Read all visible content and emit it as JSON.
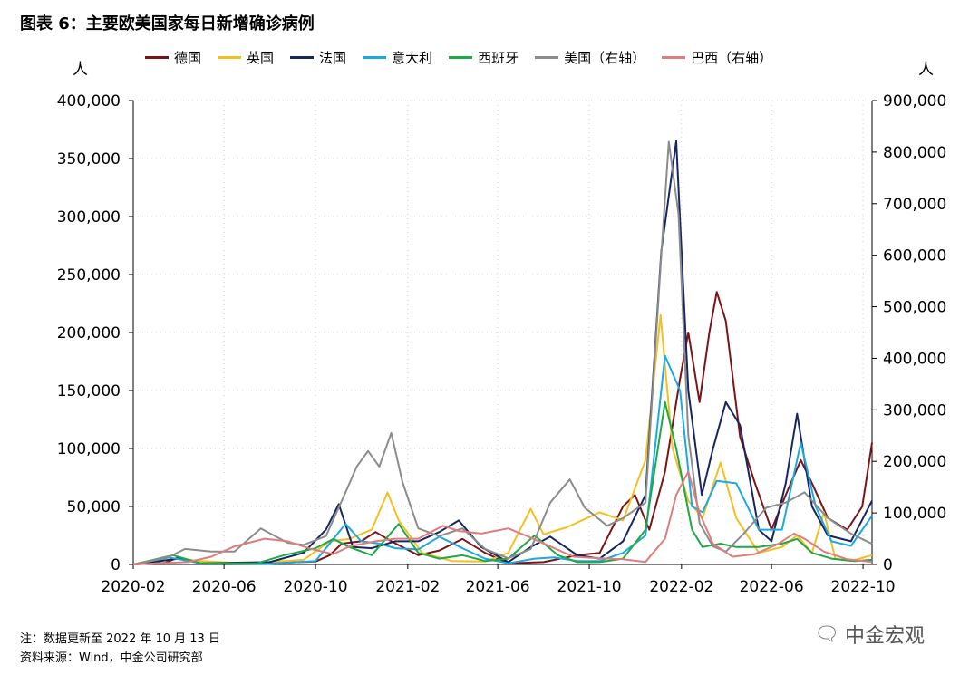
{
  "title": "图表 6：主要欧美国家每日新增确诊病例",
  "unit_left": "人",
  "unit_right": "人",
  "footnote": "注：数据更新至 2022 年 10 月 13 日",
  "source": "资料来源：Wind，中金公司研究部",
  "watermark": "中金宏观",
  "chart_data": {
    "type": "line",
    "x_ticks": [
      "2020-02",
      "2020-06",
      "2020-10",
      "2021-02",
      "2021-06",
      "2021-10",
      "2022-02",
      "2022-06",
      "2022-10"
    ],
    "xlim": [
      "2020-02-01",
      "2022-10-13"
    ],
    "ylim_left": [
      0,
      400000
    ],
    "ylim_right": [
      0,
      900000
    ],
    "y_ticks_left": [
      "0",
      "50,000",
      "100,000",
      "150,000",
      "200,000",
      "250,000",
      "300,000",
      "350,000",
      "400,000"
    ],
    "y_ticks_right": [
      "0",
      "100,000",
      "200,000",
      "300,000",
      "400,000",
      "500,000",
      "600,000",
      "700,000",
      "800,000",
      "900,000"
    ],
    "grid": true,
    "legend_position": "top",
    "series": [
      {
        "name": "德国",
        "axis": "left",
        "color": "#7B1416",
        "points": [
          [
            "2020-02-01",
            0
          ],
          [
            "2020-03-15",
            1500
          ],
          [
            "2020-04-01",
            6000
          ],
          [
            "2020-05-01",
            1000
          ],
          [
            "2020-08-01",
            1200
          ],
          [
            "2020-10-01",
            2500
          ],
          [
            "2020-10-20",
            8000
          ],
          [
            "2020-11-05",
            18000
          ],
          [
            "2020-12-01",
            20000
          ],
          [
            "2020-12-20",
            28000
          ],
          [
            "2021-01-10",
            20000
          ],
          [
            "2021-02-15",
            8000
          ],
          [
            "2021-03-15",
            12000
          ],
          [
            "2021-04-15",
            22000
          ],
          [
            "2021-05-15",
            10000
          ],
          [
            "2021-06-15",
            1000
          ],
          [
            "2021-08-01",
            2000
          ],
          [
            "2021-09-15",
            8000
          ],
          [
            "2021-10-15",
            10000
          ],
          [
            "2021-11-15",
            50000
          ],
          [
            "2021-12-01",
            60000
          ],
          [
            "2021-12-20",
            30000
          ],
          [
            "2022-01-10",
            80000
          ],
          [
            "2022-01-30",
            160000
          ],
          [
            "2022-02-10",
            200000
          ],
          [
            "2022-02-25",
            140000
          ],
          [
            "2022-03-10",
            200000
          ],
          [
            "2022-03-20",
            235000
          ],
          [
            "2022-04-01",
            210000
          ],
          [
            "2022-04-20",
            110000
          ],
          [
            "2022-05-10",
            70000
          ],
          [
            "2022-06-01",
            30000
          ],
          [
            "2022-06-20",
            60000
          ],
          [
            "2022-07-10",
            90000
          ],
          [
            "2022-07-25",
            70000
          ],
          [
            "2022-08-15",
            40000
          ],
          [
            "2022-09-10",
            30000
          ],
          [
            "2022-09-30",
            50000
          ],
          [
            "2022-10-13",
            105000
          ]
        ]
      },
      {
        "name": "英国",
        "axis": "left",
        "color": "#F5BF22",
        "points": [
          [
            "2020-02-01",
            0
          ],
          [
            "2020-04-01",
            5000
          ],
          [
            "2020-05-01",
            3000
          ],
          [
            "2020-07-01",
            800
          ],
          [
            "2020-09-15",
            4000
          ],
          [
            "2020-10-20",
            20000
          ],
          [
            "2020-11-15",
            22000
          ],
          [
            "2020-12-15",
            30000
          ],
          [
            "2021-01-05",
            62000
          ],
          [
            "2021-01-20",
            38000
          ],
          [
            "2021-02-20",
            10000
          ],
          [
            "2021-04-01",
            3000
          ],
          [
            "2021-05-15",
            2500
          ],
          [
            "2021-06-15",
            10000
          ],
          [
            "2021-07-15",
            48000
          ],
          [
            "2021-08-01",
            26000
          ],
          [
            "2021-09-01",
            32000
          ],
          [
            "2021-10-15",
            45000
          ],
          [
            "2021-11-15",
            38000
          ],
          [
            "2021-12-15",
            90000
          ],
          [
            "2022-01-04",
            215000
          ],
          [
            "2022-01-20",
            100000
          ],
          [
            "2022-02-10",
            55000
          ],
          [
            "2022-03-01",
            40000
          ],
          [
            "2022-03-25",
            88000
          ],
          [
            "2022-04-15",
            40000
          ],
          [
            "2022-05-15",
            10000
          ],
          [
            "2022-06-15",
            15000
          ],
          [
            "2022-07-05",
            25000
          ],
          [
            "2022-07-25",
            10000
          ],
          [
            "2022-08-10",
            45000
          ],
          [
            "2022-08-25",
            5000
          ],
          [
            "2022-09-15",
            3000
          ],
          [
            "2022-10-13",
            8000
          ]
        ]
      },
      {
        "name": "法国",
        "axis": "left",
        "color": "#16275F",
        "points": [
          [
            "2020-02-01",
            0
          ],
          [
            "2020-04-01",
            5000
          ],
          [
            "2020-05-01",
            1000
          ],
          [
            "2020-08-01",
            2000
          ],
          [
            "2020-09-15",
            10000
          ],
          [
            "2020-10-15",
            30000
          ],
          [
            "2020-11-01",
            52000
          ],
          [
            "2020-11-20",
            15000
          ],
          [
            "2020-12-15",
            14000
          ],
          [
            "2021-01-15",
            20000
          ],
          [
            "2021-02-15",
            20000
          ],
          [
            "2021-03-15",
            28000
          ],
          [
            "2021-04-10",
            38000
          ],
          [
            "2021-05-10",
            15000
          ],
          [
            "2021-06-15",
            2000
          ],
          [
            "2021-07-15",
            15000
          ],
          [
            "2021-08-10",
            24000
          ],
          [
            "2021-09-15",
            8000
          ],
          [
            "2021-10-15",
            5000
          ],
          [
            "2021-11-15",
            20000
          ],
          [
            "2021-12-15",
            60000
          ],
          [
            "2022-01-05",
            270000
          ],
          [
            "2022-01-25",
            365000
          ],
          [
            "2022-02-10",
            150000
          ],
          [
            "2022-02-28",
            60000
          ],
          [
            "2022-03-15",
            100000
          ],
          [
            "2022-04-01",
            140000
          ],
          [
            "2022-04-20",
            120000
          ],
          [
            "2022-05-15",
            30000
          ],
          [
            "2022-06-01",
            20000
          ],
          [
            "2022-06-20",
            70000
          ],
          [
            "2022-07-05",
            130000
          ],
          [
            "2022-07-25",
            50000
          ],
          [
            "2022-08-15",
            25000
          ],
          [
            "2022-09-15",
            20000
          ],
          [
            "2022-10-01",
            40000
          ],
          [
            "2022-10-13",
            55000
          ]
        ]
      },
      {
        "name": "意大利",
        "axis": "left",
        "color": "#1CA9E1",
        "points": [
          [
            "2020-02-01",
            0
          ],
          [
            "2020-03-20",
            6000
          ],
          [
            "2020-05-01",
            1000
          ],
          [
            "2020-08-01",
            500
          ],
          [
            "2020-10-01",
            3000
          ],
          [
            "2020-11-10",
            35000
          ],
          [
            "2020-12-01",
            20000
          ],
          [
            "2020-12-25",
            18000
          ],
          [
            "2021-01-15",
            14000
          ],
          [
            "2021-02-15",
            13000
          ],
          [
            "2021-03-15",
            24000
          ],
          [
            "2021-04-15",
            14000
          ],
          [
            "2021-05-15",
            5000
          ],
          [
            "2021-06-15",
            1000
          ],
          [
            "2021-07-20",
            5000
          ],
          [
            "2021-08-15",
            6000
          ],
          [
            "2021-09-15",
            3000
          ],
          [
            "2021-10-15",
            3000
          ],
          [
            "2021-11-15",
            10000
          ],
          [
            "2021-12-15",
            25000
          ],
          [
            "2022-01-10",
            180000
          ],
          [
            "2022-01-30",
            150000
          ],
          [
            "2022-02-15",
            50000
          ],
          [
            "2022-03-01",
            45000
          ],
          [
            "2022-03-20",
            72000
          ],
          [
            "2022-04-15",
            70000
          ],
          [
            "2022-05-15",
            30000
          ],
          [
            "2022-06-15",
            30000
          ],
          [
            "2022-07-10",
            105000
          ],
          [
            "2022-07-30",
            50000
          ],
          [
            "2022-08-20",
            20000
          ],
          [
            "2022-09-15",
            16000
          ],
          [
            "2022-10-13",
            42000
          ]
        ]
      },
      {
        "name": "西班牙",
        "axis": "left",
        "color": "#1FA846",
        "points": [
          [
            "2020-02-01",
            0
          ],
          [
            "2020-03-25",
            8000
          ],
          [
            "2020-05-01",
            1000
          ],
          [
            "2020-07-15",
            1000
          ],
          [
            "2020-08-20",
            8000
          ],
          [
            "2020-10-01",
            14000
          ],
          [
            "2020-10-25",
            22000
          ],
          [
            "2020-11-15",
            15000
          ],
          [
            "2020-12-15",
            8000
          ],
          [
            "2021-01-20",
            35000
          ],
          [
            "2021-02-15",
            10000
          ],
          [
            "2021-03-15",
            5000
          ],
          [
            "2021-04-15",
            8000
          ],
          [
            "2021-05-15",
            3000
          ],
          [
            "2021-06-15",
            5000
          ],
          [
            "2021-07-20",
            25000
          ],
          [
            "2021-08-20",
            8000
          ],
          [
            "2021-09-15",
            2000
          ],
          [
            "2021-10-15",
            2000
          ],
          [
            "2021-11-15",
            5000
          ],
          [
            "2021-12-15",
            30000
          ],
          [
            "2022-01-10",
            140000
          ],
          [
            "2022-01-25",
            100000
          ],
          [
            "2022-02-15",
            30000
          ],
          [
            "2022-03-01",
            15000
          ],
          [
            "2022-03-25",
            18000
          ],
          [
            "2022-04-15",
            15000
          ],
          [
            "2022-05-15",
            15000
          ],
          [
            "2022-06-15",
            18000
          ],
          [
            "2022-07-05",
            22000
          ],
          [
            "2022-07-25",
            10000
          ],
          [
            "2022-08-20",
            5000
          ],
          [
            "2022-09-20",
            3000
          ],
          [
            "2022-10-13",
            4000
          ]
        ]
      },
      {
        "name": "美国（右轴）",
        "axis": "right",
        "color": "#8C8C8C",
        "points": [
          [
            "2020-02-01",
            0
          ],
          [
            "2020-03-20",
            15000
          ],
          [
            "2020-04-10",
            30000
          ],
          [
            "2020-05-15",
            25000
          ],
          [
            "2020-06-15",
            25000
          ],
          [
            "2020-07-20",
            70000
          ],
          [
            "2020-08-25",
            42000
          ],
          [
            "2020-09-15",
            38000
          ],
          [
            "2020-10-15",
            55000
          ],
          [
            "2020-11-10",
            140000
          ],
          [
            "2020-11-25",
            190000
          ],
          [
            "2020-12-10",
            220000
          ],
          [
            "2020-12-25",
            190000
          ],
          [
            "2021-01-10",
            255000
          ],
          [
            "2021-01-25",
            160000
          ],
          [
            "2021-02-15",
            70000
          ],
          [
            "2021-03-15",
            55000
          ],
          [
            "2021-04-15",
            70000
          ],
          [
            "2021-05-15",
            30000
          ],
          [
            "2021-06-15",
            12000
          ],
          [
            "2021-07-15",
            30000
          ],
          [
            "2021-08-10",
            120000
          ],
          [
            "2021-09-05",
            165000
          ],
          [
            "2021-09-25",
            110000
          ],
          [
            "2021-10-25",
            75000
          ],
          [
            "2021-11-15",
            90000
          ],
          [
            "2021-12-15",
            120000
          ],
          [
            "2022-01-05",
            600000
          ],
          [
            "2022-01-15",
            820000
          ],
          [
            "2022-01-28",
            680000
          ],
          [
            "2022-02-10",
            250000
          ],
          [
            "2022-02-25",
            80000
          ],
          [
            "2022-03-15",
            35000
          ],
          [
            "2022-04-01",
            25000
          ],
          [
            "2022-04-25",
            60000
          ],
          [
            "2022-05-25",
            110000
          ],
          [
            "2022-06-20",
            120000
          ],
          [
            "2022-07-15",
            140000
          ],
          [
            "2022-08-15",
            90000
          ],
          [
            "2022-09-15",
            60000
          ],
          [
            "2022-10-13",
            40000
          ]
        ]
      },
      {
        "name": "巴西（右轴）",
        "axis": "right",
        "color": "#E07C7C",
        "points": [
          [
            "2020-02-01",
            0
          ],
          [
            "2020-04-15",
            5000
          ],
          [
            "2020-05-15",
            15000
          ],
          [
            "2020-06-15",
            35000
          ],
          [
            "2020-07-25",
            50000
          ],
          [
            "2020-08-25",
            45000
          ],
          [
            "2020-09-25",
            30000
          ],
          [
            "2020-10-25",
            20000
          ],
          [
            "2020-11-15",
            35000
          ],
          [
            "2020-12-20",
            45000
          ],
          [
            "2021-01-15",
            50000
          ],
          [
            "2021-02-15",
            50000
          ],
          [
            "2021-03-20",
            75000
          ],
          [
            "2021-04-10",
            65000
          ],
          [
            "2021-05-10",
            60000
          ],
          [
            "2021-06-15",
            70000
          ],
          [
            "2021-07-10",
            55000
          ],
          [
            "2021-08-10",
            35000
          ],
          [
            "2021-09-10",
            15000
          ],
          [
            "2021-10-15",
            12000
          ],
          [
            "2021-11-15",
            10000
          ],
          [
            "2021-12-15",
            5000
          ],
          [
            "2022-01-10",
            50000
          ],
          [
            "2022-01-25",
            135000
          ],
          [
            "2022-02-10",
            180000
          ],
          [
            "2022-02-25",
            100000
          ],
          [
            "2022-03-15",
            40000
          ],
          [
            "2022-04-10",
            15000
          ],
          [
            "2022-05-10",
            20000
          ],
          [
            "2022-06-10",
            40000
          ],
          [
            "2022-07-01",
            60000
          ],
          [
            "2022-07-15",
            50000
          ],
          [
            "2022-08-10",
            25000
          ],
          [
            "2022-09-10",
            10000
          ],
          [
            "2022-10-13",
            5000
          ]
        ]
      }
    ]
  }
}
